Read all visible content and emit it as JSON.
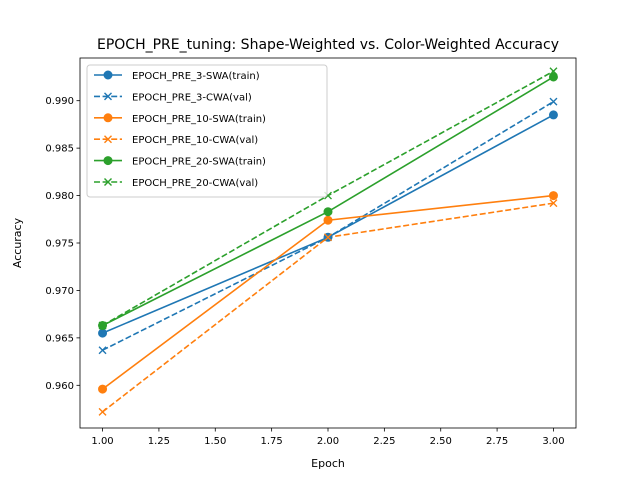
{
  "chart_data": {
    "type": "line",
    "title": "EPOCH_PRE_tuning: Shape-Weighted vs. Color-Weighted Accuracy",
    "xlabel": "Epoch",
    "ylabel": "Accuracy",
    "xlim": [
      0.9,
      3.1
    ],
    "ylim": [
      0.9555,
      0.9945
    ],
    "x_ticks": [
      "1.00",
      "1.25",
      "1.50",
      "1.75",
      "2.00",
      "2.25",
      "2.50",
      "2.75",
      "3.00"
    ],
    "y_ticks": [
      "0.960",
      "0.965",
      "0.970",
      "0.975",
      "0.980",
      "0.985",
      "0.990"
    ],
    "x": [
      1,
      2,
      3
    ],
    "grid": false,
    "legend_position": "top-left",
    "series": [
      {
        "name": "EPOCH_PRE_3-SWA(train)",
        "color": "#1f77b4",
        "dash": "solid",
        "marker": "circle",
        "values": [
          0.9655,
          0.9756,
          0.9885
        ]
      },
      {
        "name": "EPOCH_PRE_3-CWA(val)",
        "color": "#1f77b4",
        "dash": "dashed",
        "marker": "x",
        "values": [
          0.9637,
          0.9756,
          0.9899
        ]
      },
      {
        "name": "EPOCH_PRE_10-SWA(train)",
        "color": "#ff7f0e",
        "dash": "solid",
        "marker": "circle",
        "values": [
          0.9596,
          0.9774,
          0.98
        ]
      },
      {
        "name": "EPOCH_PRE_10-CWA(val)",
        "color": "#ff7f0e",
        "dash": "dashed",
        "marker": "x",
        "values": [
          0.9572,
          0.9756,
          0.9792
        ]
      },
      {
        "name": "EPOCH_PRE_20-SWA(train)",
        "color": "#2ca02c",
        "dash": "solid",
        "marker": "circle",
        "values": [
          0.9663,
          0.9783,
          0.9925
        ]
      },
      {
        "name": "EPOCH_PRE_20-CWA(val)",
        "color": "#2ca02c",
        "dash": "dashed",
        "marker": "x",
        "values": [
          0.9663,
          0.98,
          0.9931
        ]
      }
    ]
  }
}
